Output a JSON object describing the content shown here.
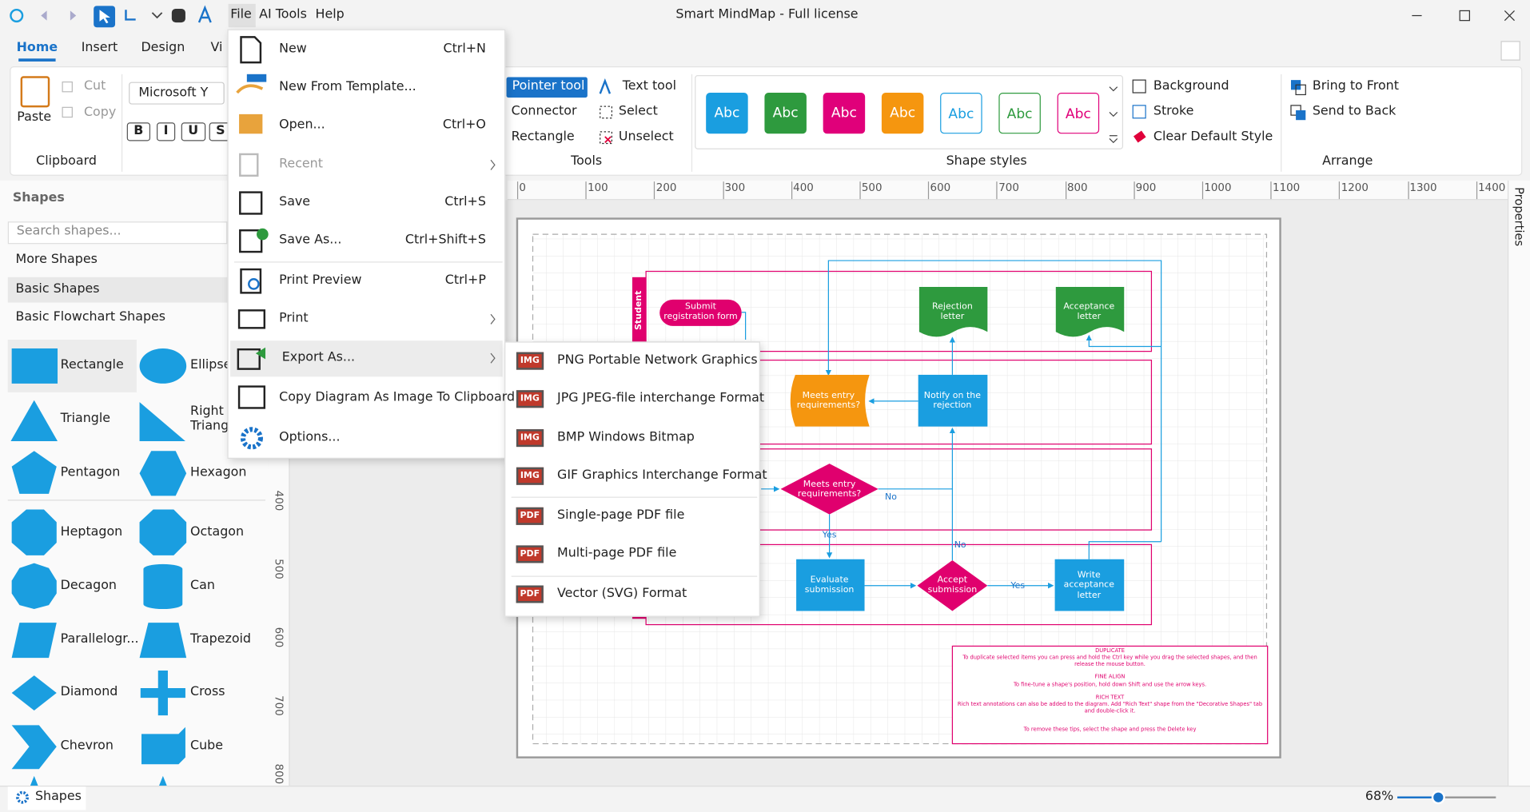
{
  "title_bar": {
    "menu": [
      "File",
      "AI Tools",
      "Help"
    ],
    "title": "Smart MindMap - Full license"
  },
  "tabs": [
    "Home",
    "Insert",
    "Design",
    "Vi"
  ],
  "ribbon": {
    "clipboard": {
      "paste": "Paste",
      "cut": "Cut",
      "copy": "Copy",
      "label": "Clipboard"
    },
    "font": {
      "name": "Microsoft Y",
      "buttons": [
        "B",
        "I",
        "U",
        "S"
      ]
    },
    "tools": {
      "pointer": "Pointer tool",
      "text": "Text tool",
      "connector": "Connector",
      "select": "Select",
      "rectangle": "Rectangle",
      "unselect": "Unselect",
      "label": "Tools"
    },
    "shape_styles": {
      "samples": [
        "Abc",
        "Abc",
        "Abc",
        "Abc",
        "Abc",
        "Abc",
        "Abc"
      ],
      "label": "Shape styles"
    },
    "format": [
      "Background",
      "Stroke",
      "Clear Default Style"
    ],
    "arrange": {
      "items": [
        "Bring to Front",
        "Send to Back"
      ],
      "label": "Arrange"
    }
  },
  "sidebar": {
    "title": "Shapes",
    "search": "Search shapes...",
    "categories": [
      "More Shapes",
      "Basic Shapes",
      "Basic Flowchart Shapes"
    ],
    "shapes": [
      "Rectangle",
      "Ellipse",
      "Triangle",
      "Right Triang",
      "Pentagon",
      "Hexagon",
      "Heptagon",
      "Octagon",
      "Decagon",
      "Can",
      "Parallelogr...",
      "Trapezoid",
      "Diamond",
      "Cross",
      "Chevron",
      "Cube"
    ]
  },
  "file_menu": [
    {
      "label": "New",
      "shortcut": "Ctrl+N"
    },
    {
      "label": "New From Template..."
    },
    {
      "label": "Open...",
      "shortcut": "Ctrl+O"
    },
    {
      "label": "Recent"
    },
    {
      "label": "Save",
      "shortcut": "Ctrl+S"
    },
    {
      "label": "Save As...",
      "shortcut": "Ctrl+Shift+S"
    },
    {
      "label": "Print Preview",
      "shortcut": "Ctrl+P"
    },
    {
      "label": "Print"
    },
    {
      "label": "Export As..."
    },
    {
      "label": "Copy Diagram As Image To Clipboard"
    },
    {
      "label": "Options..."
    }
  ],
  "export_menu": [
    {
      "badge": "IMG",
      "label": "PNG Portable Network Graphics"
    },
    {
      "badge": "IMG",
      "label": "JPG JPEG-file interchange Format"
    },
    {
      "badge": "IMG",
      "label": "BMP Windows Bitmap"
    },
    {
      "badge": "IMG",
      "label": "GIF Graphics Interchange Format"
    },
    {
      "badge": "PDF",
      "label": "Single-page PDF file"
    },
    {
      "badge": "PDF",
      "label": "Multi-page PDF file"
    },
    {
      "badge": "PDF",
      "label": "Vector (SVG) Format"
    }
  ],
  "rulers": {
    "top": [
      "0",
      "100",
      "200",
      "300",
      "400",
      "500",
      "600",
      "700",
      "800",
      "900",
      "1000",
      "1100",
      "1200",
      "1300",
      "1400"
    ],
    "left": [
      "400",
      "500",
      "600",
      "700",
      "800"
    ]
  },
  "diagram": {
    "lane": "Student",
    "nodes": [
      "Submit registration form",
      "Rejection letter",
      "Acceptance letter",
      "Meets entry requirements?",
      "Notify on the rejection",
      "Meets entry requirements?",
      "Evaluate submission",
      "Accept submission",
      "Write acceptance letter"
    ],
    "edge_labels": [
      "No",
      "Yes",
      "No",
      "Yes"
    ],
    "tips": [
      "DUPLICATE",
      "To duplicate selected items you can press and hold the Ctrl key while you drag the selected shapes, and then release the mouse button.",
      "FINE ALIGN",
      "To fine-tune a shape's position, hold down Shift and use the arrow keys.",
      "RICH TEXT",
      "Rich text annotations can also be added to the diagram. Add \"Rich Text\" shape from the \"Decorative Shapes\" tab and double-click it.",
      "To remove these tips, select the shape and press the Delete key"
    ]
  },
  "status": {
    "panel": "Shapes",
    "zoom": "68%",
    "properties": "Properties"
  }
}
